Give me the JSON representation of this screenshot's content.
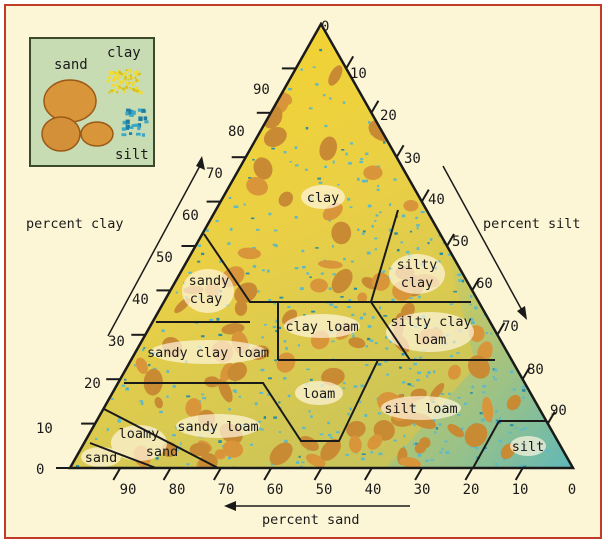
{
  "legend": {
    "sand": "sand",
    "clay": "clay",
    "silt": "silt",
    "colors": {
      "sand": "#d9953a",
      "clay": "#f2da2e",
      "silt": "#5fb9c6",
      "background": "#c8dcb4"
    }
  },
  "axes": {
    "clay": {
      "title": "percent clay",
      "ticks": [
        "0",
        "10",
        "20",
        "30",
        "40",
        "50",
        "60",
        "70",
        "80",
        "90"
      ]
    },
    "silt": {
      "title": "percent silt",
      "ticks": [
        "0",
        "10",
        "20",
        "30",
        "40",
        "50",
        "60",
        "70",
        "80",
        "90"
      ]
    },
    "sand": {
      "title": "percent sand",
      "ticks": [
        "90",
        "80",
        "70",
        "60",
        "50",
        "40",
        "30",
        "20",
        "10",
        "0"
      ]
    },
    "apex_label": "0"
  },
  "regions": {
    "clay": "clay",
    "silty_clay": [
      "silty",
      "clay"
    ],
    "sandy_clay": [
      "sandy",
      "clay"
    ],
    "clay_loam": "clay loam",
    "silty_clay_loam": [
      "silty clay",
      "loam"
    ],
    "sandy_clay_loam": "sandy clay loam",
    "loam": "loam",
    "silt_loam": "silt loam",
    "sandy_loam": "sandy loam",
    "loamy_sand": [
      "loamy",
      "sand"
    ],
    "sand": "sand",
    "silt": "silt"
  },
  "colors": {
    "frame_border": "#c23a2a",
    "frame_fill": "#fdf6d6",
    "line": "#1a1a1a"
  }
}
